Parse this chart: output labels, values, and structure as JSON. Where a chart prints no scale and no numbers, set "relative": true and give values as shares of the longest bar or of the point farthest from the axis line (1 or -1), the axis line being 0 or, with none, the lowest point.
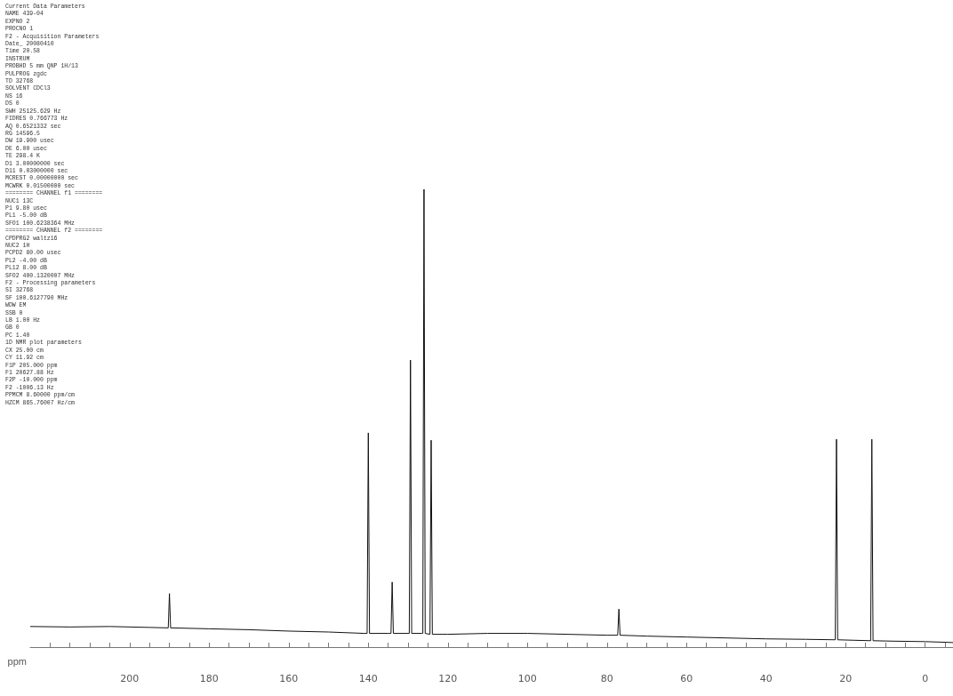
{
  "chart_data": {
    "type": "line",
    "relative": true,
    "xlabel": "ppm",
    "x": [
      225,
      215,
      205,
      195,
      190.3,
      190,
      189.7,
      180,
      170,
      160,
      150,
      141,
      140.3,
      140,
      139.7,
      135,
      134.3,
      134,
      133.7,
      130,
      129.7,
      129.4,
      129.1,
      126.6,
      126.3,
      126,
      125.7,
      124.5,
      124.2,
      123.9,
      120,
      110,
      100,
      90,
      80,
      77.3,
      77,
      76.7,
      70,
      60,
      50,
      40,
      30,
      22.6,
      22.3,
      22,
      18,
      13.7,
      13.4,
      13.1,
      8,
      0,
      -7
    ],
    "series": [
      {
        "color": "#111111",
        "values": [
          0.045,
          0.044,
          0.045,
          0.043,
          0.042,
          0.117,
          0.042,
          0.04,
          0.038,
          0.035,
          0.033,
          0.03,
          0.03,
          0.468,
          0.03,
          0.03,
          0.03,
          0.142,
          0.03,
          0.03,
          0.03,
          0.627,
          0.03,
          0.03,
          0.03,
          1,
          0.03,
          0.028,
          0.452,
          0.028,
          0.028,
          0.03,
          0.03,
          0.028,
          0.026,
          0.026,
          0.083,
          0.026,
          0.024,
          0.022,
          0.02,
          0.018,
          0.017,
          0.016,
          0.454,
          0.016,
          0.015,
          0.014,
          0.454,
          0.014,
          0.013,
          0.012,
          0.01
        ]
      }
    ],
    "xlim": [
      225,
      -7
    ],
    "xticks": [
      {
        "value": 220,
        "label": null
      },
      {
        "value": 215,
        "label": null
      },
      {
        "value": 210,
        "label": null
      },
      {
        "value": 205,
        "label": null
      },
      200,
      {
        "value": 195,
        "label": null
      },
      {
        "value": 190,
        "label": null
      },
      {
        "value": 185,
        "label": null
      },
      180,
      {
        "value": 175,
        "label": null
      },
      {
        "value": 170,
        "label": null
      },
      {
        "value": 165,
        "label": null
      },
      160,
      {
        "value": 155,
        "label": null
      },
      {
        "value": 150,
        "label": null
      },
      {
        "value": 145,
        "label": null
      },
      140,
      {
        "value": 135,
        "label": null
      },
      {
        "value": 130,
        "label": null
      },
      {
        "value": 125,
        "label": null
      },
      120,
      {
        "value": 115,
        "label": null
      },
      {
        "value": 110,
        "label": null
      },
      {
        "value": 105,
        "label": null
      },
      100,
      {
        "value": 95,
        "label": null
      },
      {
        "value": 90,
        "label": null
      },
      {
        "value": 85,
        "label": null
      },
      80,
      {
        "value": 75,
        "label": null
      },
      {
        "value": 70,
        "label": null
      },
      {
        "value": 65,
        "label": null
      },
      60,
      {
        "value": 55,
        "label": null
      },
      {
        "value": 50,
        "label": null
      },
      {
        "value": 45,
        "label": null
      },
      40,
      {
        "value": 35,
        "label": null
      },
      {
        "value": 30,
        "label": null
      },
      {
        "value": 25,
        "label": null
      },
      20,
      {
        "value": 15,
        "label": null
      },
      {
        "value": 10,
        "label": null
      },
      {
        "value": 5,
        "label": null
      },
      0,
      {
        "value": -5,
        "label": null
      }
    ],
    "grid": false,
    "marker": "none",
    "line_style": "solid",
    "annotations": [
      "Current Data Parameters",
      "NAME 439-04",
      "EXPNO 2",
      "PROCNO 1",
      "F2 - Acquisition Parameters",
      "Date_ 20080410",
      "Time 20.58",
      "INSTRUM",
      "PROBHD 5 mm QNP 1H/13",
      "PULPROG zgdc",
      "TD 32768",
      "SOLVENT CDCl3",
      "NS 16",
      "DS 0",
      "SWH 25125.629 Hz",
      "FIDRES 0.766773 Hz",
      "AQ 0.6521332 sec",
      "RG 14596.5",
      "DW 19.900 usec",
      "DE 6.00 usec",
      "TE 298.4 K",
      "D1 3.00000000 sec",
      "D11 0.03000000 sec",
      "MCREST 0.00000000 sec",
      "MCWRK 0.01500000 sec",
      "======== CHANNEL f1 ========",
      "NUC1 13C",
      "P1 9.80 usec",
      "PL1 -5.00 dB",
      "SFO1 100.6238364 MHz",
      "======== CHANNEL f2 ========",
      "CPDPRG2 waltz16",
      "NUC2 1H",
      "PCPD2 80.00 usec",
      "PL2 -4.00 dB",
      "PL12 8.00 dB",
      "SFO2 400.1320007 MHz",
      "F2 - Processing parameters",
      "SI 32768",
      "SF 100.6127790 MHz",
      "WDW EM",
      "SSB 0",
      "LB 1.00 Hz",
      "GB 0",
      "PC 1.40",
      "1D NMR plot parameters",
      "CX 25.00 cm",
      "CY 11.92 cm",
      "F1P 205.000 ppm",
      "F1 20627.88 Hz",
      "F2P -10.000 ppm",
      "F2 -1006.13 Hz",
      "PPMCM 8.60000 ppm/cm",
      "HZCM 865.76007 Hz/cm"
    ]
  }
}
